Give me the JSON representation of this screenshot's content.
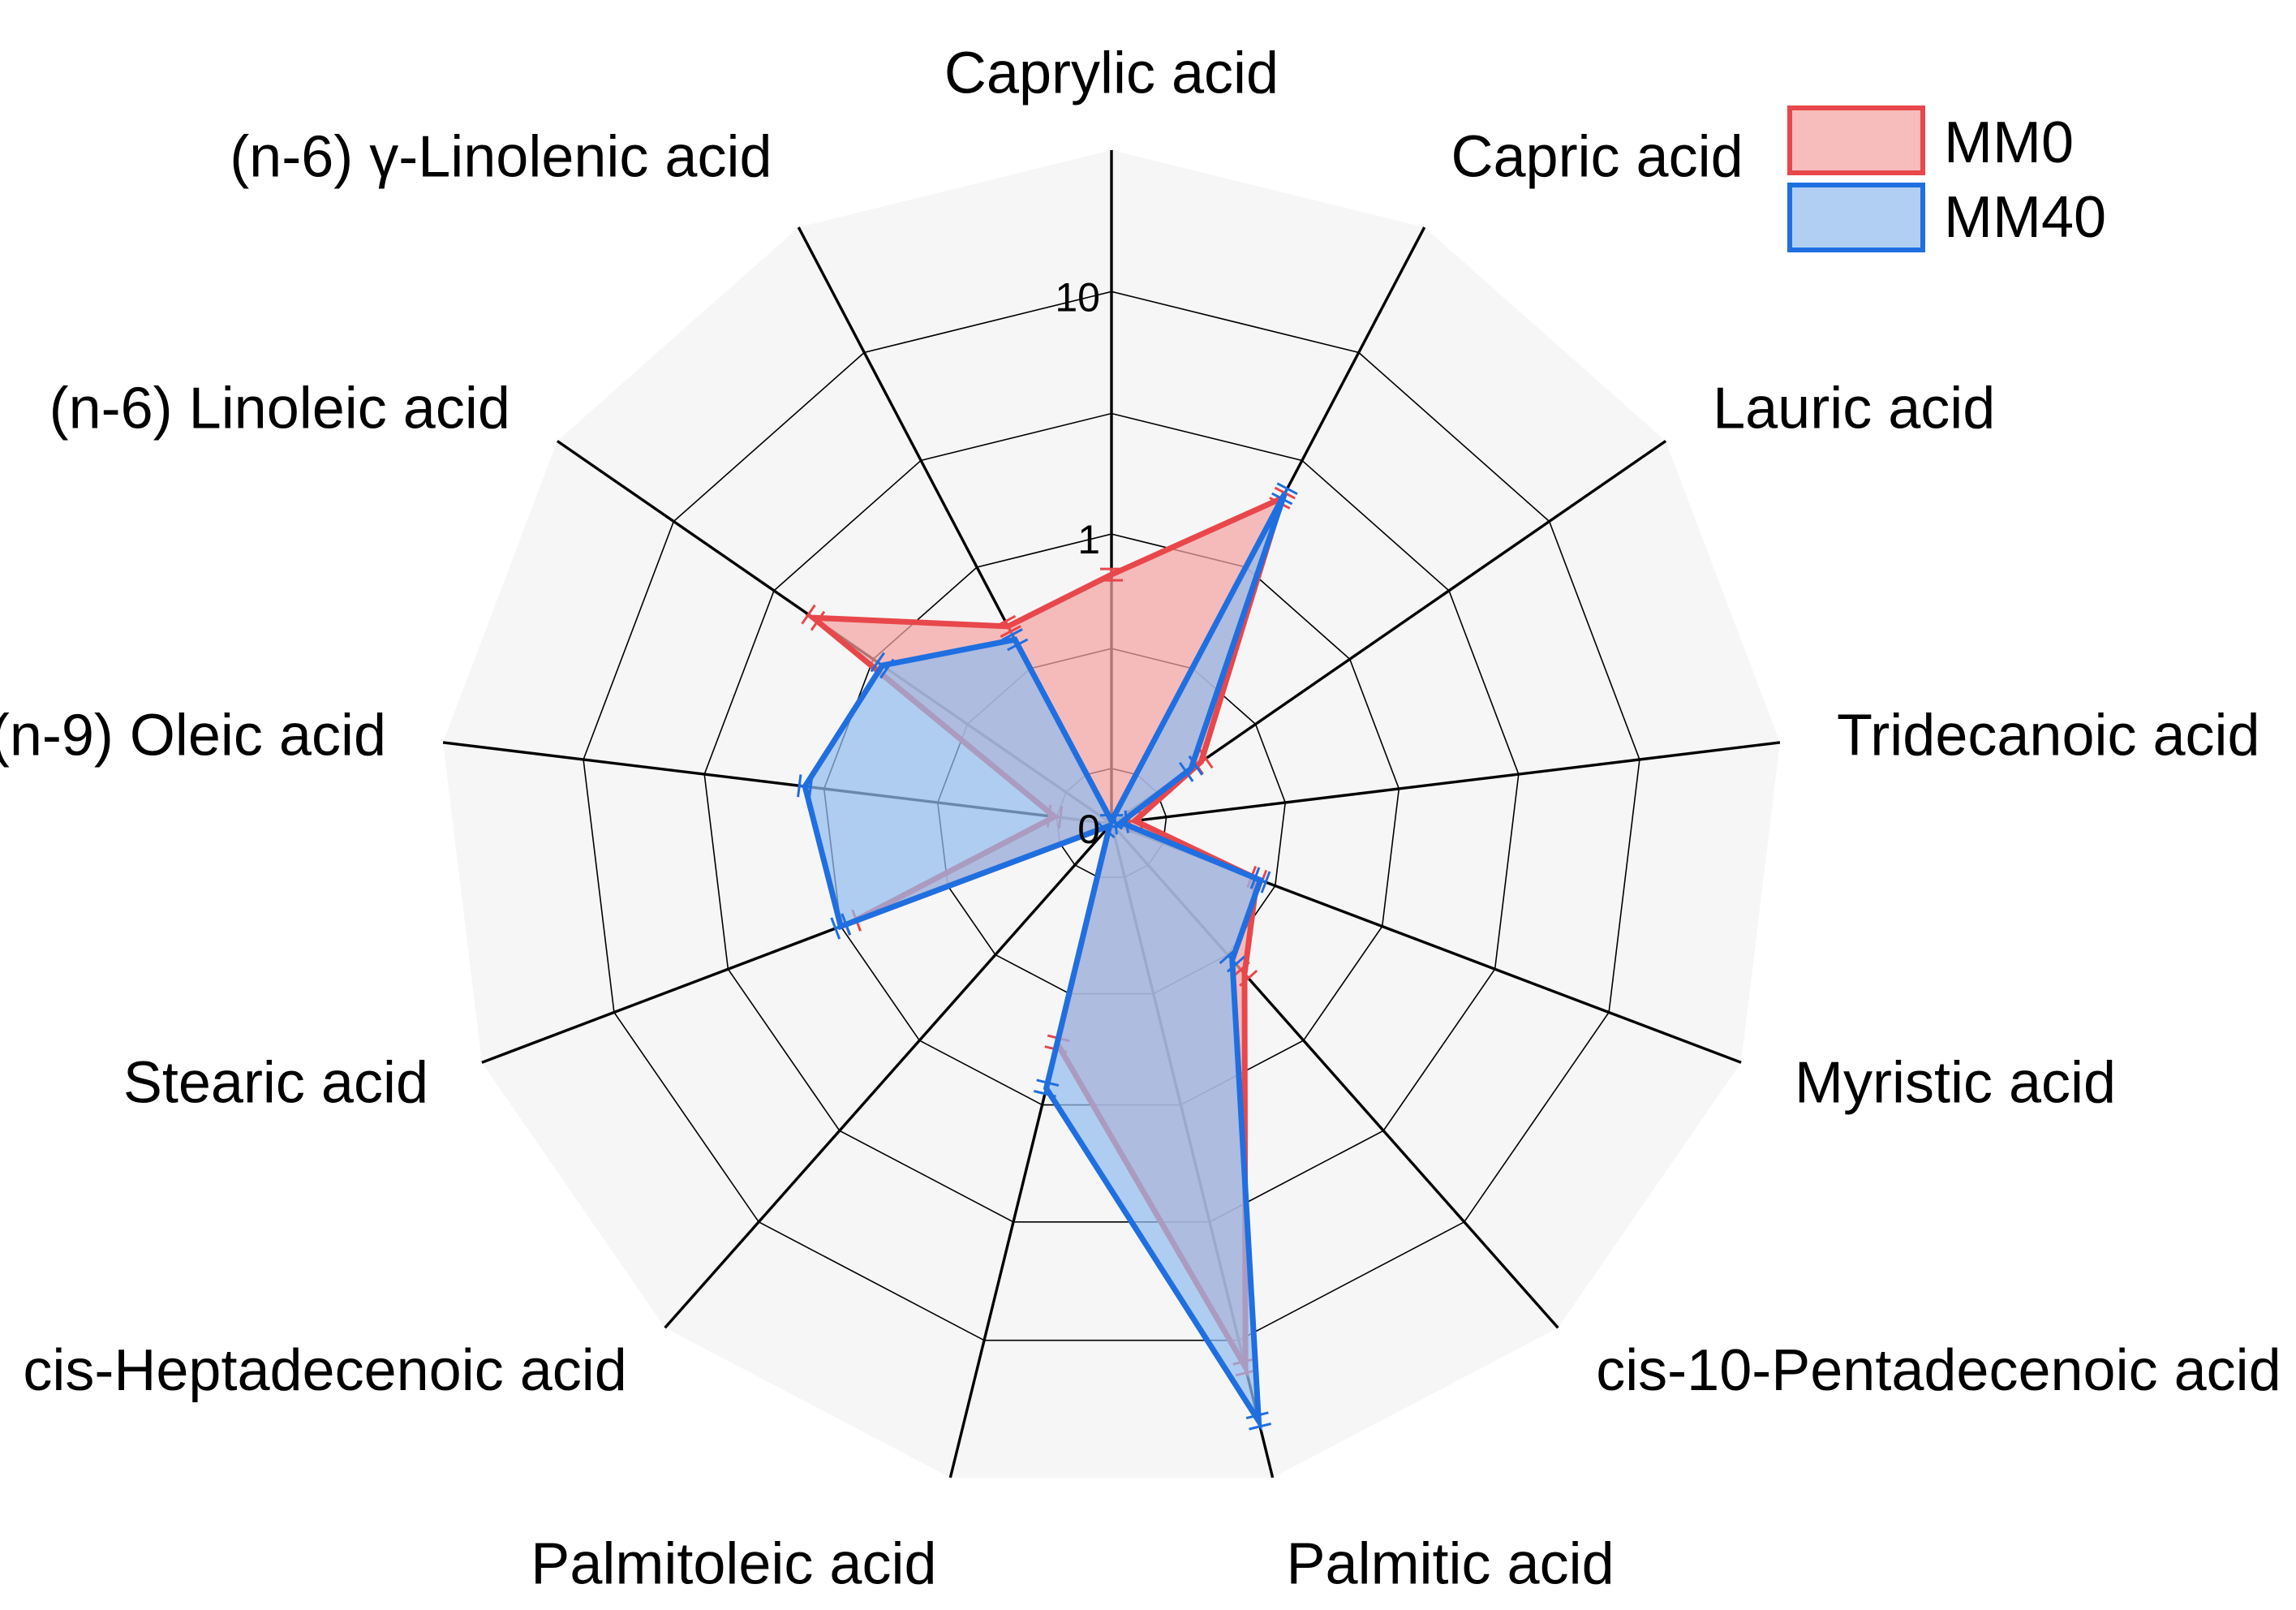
{
  "chart_data": {
    "type": "radar",
    "scale": "log",
    "categories": [
      "Caprylic acid",
      "Capric acid",
      "Lauric acid",
      "Tridecanoic acid",
      "Myristic acid",
      "cis-10-Pentadecenoic acid",
      "Palmitic acid",
      "Palmitoleic acid",
      "cis-Heptadecenoic acid",
      "Stearic acid",
      "(n-9) Oleic acid",
      "(n-6) Linoleic acid",
      "(n-6) γ-Linolenic acid"
    ],
    "radial_ticks": [
      "0",
      "1",
      "10"
    ],
    "rlim": [
      0,
      20
    ],
    "series": [
      {
        "name": "MM0",
        "color": "#e8474b",
        "fill": "#f4a3a3",
        "values": [
          0.68,
          2.1,
          0.18,
          0.08,
          0.28,
          0.43,
          13.0,
          0.55,
          0.015,
          0.9,
          0.11,
          2.0,
          0.53
        ]
      },
      {
        "name": "MM40",
        "color": "#1f6fe0",
        "fill": "#93bcee",
        "values": [
          0.02,
          2.2,
          0.16,
          0.07,
          0.29,
          0.36,
          22.0,
          0.85,
          0.06,
          1.0,
          1.2,
          0.9,
          0.46
        ]
      }
    ],
    "legend": {
      "position": "top-right",
      "entries": [
        "MM0",
        "MM40"
      ]
    }
  }
}
